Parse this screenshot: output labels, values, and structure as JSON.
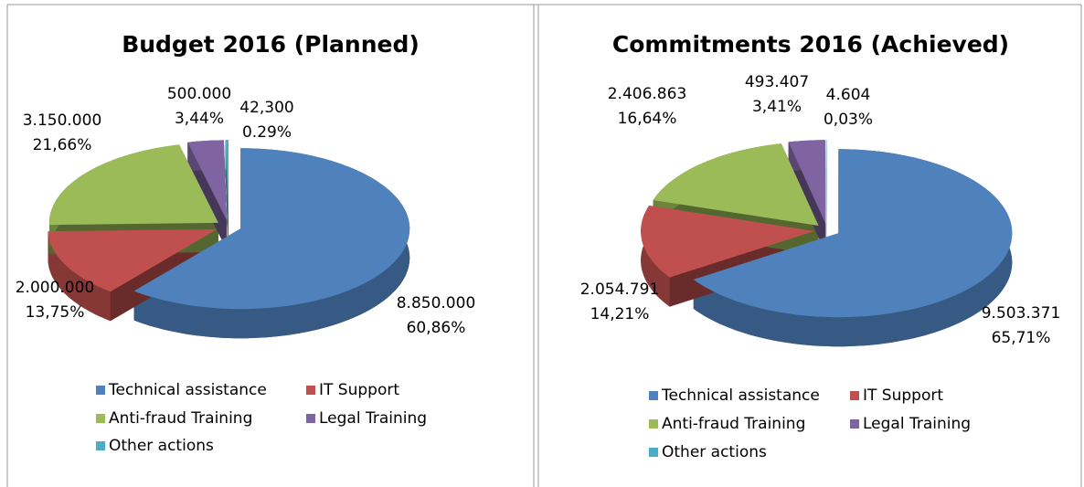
{
  "chart_data": [
    {
      "type": "pie",
      "title": "Budget 2016 (Planned)",
      "categories": [
        "Technical assistance",
        "IT Support",
        "Anti-fraud Training",
        "Legal Training",
        "Other actions"
      ],
      "values": [
        8850000,
        2000000,
        3150000,
        500000,
        42300
      ],
      "value_labels": [
        "8.850.000",
        "2.000.000",
        "3.150.000",
        "500.000",
        "42,300"
      ],
      "percents": [
        60.86,
        13.75,
        21.66,
        3.44,
        0.29
      ],
      "percent_labels": [
        "60,86%",
        "13,75%",
        "21,66%",
        "3,44%",
        "0.29%"
      ],
      "colors": [
        "#4f81bd",
        "#c0504d",
        "#9bbb59",
        "#8064a2",
        "#4bacc6"
      ],
      "legend": "bottom"
    },
    {
      "type": "pie",
      "title": "Commitments 2016 (Achieved)",
      "categories": [
        "Technical assistance",
        "IT Support",
        "Anti-fraud Training",
        "Legal Training",
        "Other actions"
      ],
      "values": [
        9503371,
        2054791,
        2406863,
        493407,
        4604
      ],
      "value_labels": [
        "9.503.371",
        "2.054.791",
        "2.406.863",
        "493.407",
        "4.604"
      ],
      "percents": [
        65.71,
        14.21,
        16.64,
        3.41,
        0.03
      ],
      "percent_labels": [
        "65,71%",
        "14,21%",
        "16,64%",
        "3,41%",
        "0,03%"
      ],
      "colors": [
        "#4f81bd",
        "#c0504d",
        "#9bbb59",
        "#8064a2",
        "#4bacc6"
      ],
      "legend": "bottom"
    }
  ]
}
